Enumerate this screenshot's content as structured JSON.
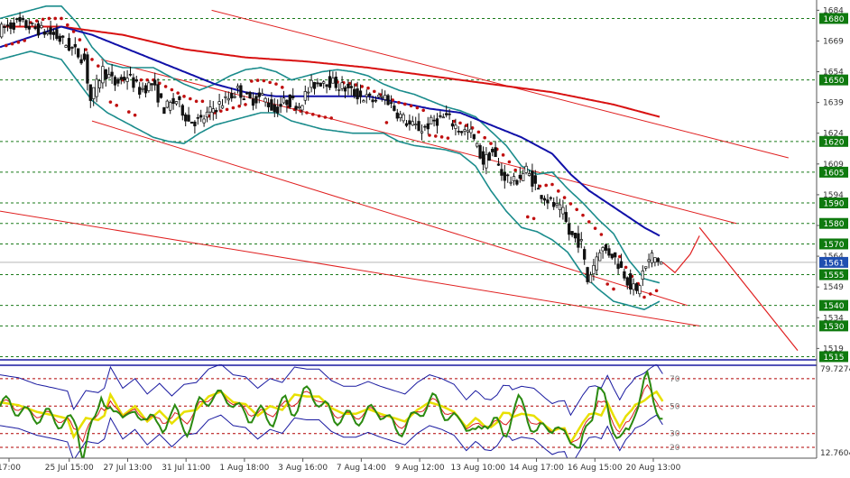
{
  "chart_data": {
    "type": "candlestick",
    "price_axis": {
      "ylim": [
        1513,
        1689
      ],
      "tick_labels": [
        "1684",
        "1669",
        "1654",
        "1639",
        "1624",
        "1609",
        "1594",
        "1579",
        "1564",
        "1549",
        "1534",
        "1519"
      ],
      "level_labels": [
        "1680",
        "1650",
        "1620",
        "1605",
        "1590",
        "1580",
        "1570",
        "1555",
        "1540",
        "1530",
        "1515"
      ],
      "current_price": "1561"
    },
    "x_axis": {
      "tick_labels": [
        "17:00",
        "25 Jul 15:00",
        "27 Jul 13:00",
        "31 Jul 11:00",
        "1 Aug 18:00",
        "3 Aug 16:00",
        "7 Aug 14:00",
        "9 Aug 12:00",
        "13 Aug 10:00",
        "14 Aug 17:00",
        "16 Aug 15:00",
        "20 Aug 13:00"
      ]
    },
    "oscillator": {
      "ylim": [
        12.7604,
        79.7274
      ],
      "axis_labels": [
        "79.7274",
        "12.7604"
      ],
      "levels": [
        "70",
        "50",
        "30",
        "20"
      ]
    },
    "close_path": [
      [
        0,
        1674
      ],
      [
        6,
        1678
      ],
      [
        12,
        1675
      ],
      [
        18,
        1672
      ],
      [
        24,
        1665
      ],
      [
        28,
        1660
      ],
      [
        30,
        1640
      ],
      [
        34,
        1655
      ],
      [
        38,
        1648
      ],
      [
        42,
        1652
      ],
      [
        46,
        1645
      ],
      [
        50,
        1648
      ],
      [
        54,
        1636
      ],
      [
        58,
        1640
      ],
      [
        62,
        1630
      ],
      [
        66,
        1630
      ],
      [
        70,
        1636
      ],
      [
        74,
        1640
      ],
      [
        78,
        1645
      ],
      [
        82,
        1640
      ],
      [
        86,
        1642
      ],
      [
        90,
        1635
      ],
      [
        94,
        1640
      ],
      [
        98,
        1638
      ],
      [
        102,
        1647
      ],
      [
        106,
        1650
      ],
      [
        110,
        1648
      ],
      [
        114,
        1645
      ],
      [
        118,
        1642
      ],
      [
        122,
        1640
      ],
      [
        126,
        1642
      ],
      [
        130,
        1634
      ],
      [
        134,
        1628
      ],
      [
        138,
        1626
      ],
      [
        142,
        1630
      ],
      [
        146,
        1632
      ],
      [
        150,
        1626
      ],
      [
        154,
        1624
      ],
      [
        158,
        1610
      ],
      [
        161,
        1615
      ],
      [
        164,
        1604
      ],
      [
        168,
        1600
      ],
      [
        172,
        1606
      ],
      [
        176,
        1596
      ],
      [
        180,
        1590
      ],
      [
        184,
        1585
      ],
      [
        186,
        1575
      ],
      [
        190,
        1570
      ],
      [
        192,
        1552
      ],
      [
        194,
        1560
      ],
      [
        196,
        1568
      ],
      [
        200,
        1565
      ],
      [
        203,
        1558
      ],
      [
        206,
        1550
      ],
      [
        208,
        1546
      ],
      [
        210,
        1556
      ],
      [
        213,
        1564
      ],
      [
        216,
        1561
      ]
    ],
    "upper_bollinger": [
      [
        0,
        1680
      ],
      [
        10,
        1684
      ],
      [
        15,
        1686
      ],
      [
        20,
        1686
      ],
      [
        25,
        1678
      ],
      [
        30,
        1666
      ],
      [
        35,
        1658
      ],
      [
        40,
        1656
      ],
      [
        45,
        1656
      ],
      [
        50,
        1656
      ],
      [
        55,
        1652
      ],
      [
        60,
        1648
      ],
      [
        65,
        1645
      ],
      [
        70,
        1648
      ],
      [
        75,
        1652
      ],
      [
        80,
        1655
      ],
      [
        85,
        1656
      ],
      [
        90,
        1654
      ],
      [
        95,
        1650
      ],
      [
        100,
        1652
      ],
      [
        105,
        1654
      ],
      [
        110,
        1655
      ],
      [
        115,
        1654
      ],
      [
        120,
        1652
      ],
      [
        125,
        1648
      ],
      [
        130,
        1645
      ],
      [
        135,
        1643
      ],
      [
        140,
        1640
      ],
      [
        145,
        1637
      ],
      [
        150,
        1635
      ],
      [
        155,
        1632
      ],
      [
        160,
        1625
      ],
      [
        165,
        1618
      ],
      [
        170,
        1608
      ],
      [
        175,
        1604
      ],
      [
        180,
        1605
      ],
      [
        185,
        1597
      ],
      [
        190,
        1590
      ],
      [
        195,
        1582
      ],
      [
        200,
        1575
      ],
      [
        205,
        1562
      ],
      [
        210,
        1553
      ],
      [
        215,
        1551
      ]
    ],
    "lower_bollinger": [
      [
        0,
        1660
      ],
      [
        10,
        1664
      ],
      [
        20,
        1660
      ],
      [
        30,
        1640
      ],
      [
        35,
        1634
      ],
      [
        40,
        1630
      ],
      [
        45,
        1626
      ],
      [
        50,
        1622
      ],
      [
        55,
        1620
      ],
      [
        60,
        1619
      ],
      [
        65,
        1624
      ],
      [
        70,
        1628
      ],
      [
        75,
        1630
      ],
      [
        80,
        1632
      ],
      [
        85,
        1634
      ],
      [
        90,
        1634
      ],
      [
        95,
        1630
      ],
      [
        100,
        1628
      ],
      [
        105,
        1626
      ],
      [
        110,
        1625
      ],
      [
        115,
        1624
      ],
      [
        120,
        1624
      ],
      [
        125,
        1624
      ],
      [
        130,
        1620
      ],
      [
        135,
        1618
      ],
      [
        140,
        1617
      ],
      [
        145,
        1616
      ],
      [
        150,
        1614
      ],
      [
        155,
        1608
      ],
      [
        160,
        1596
      ],
      [
        165,
        1586
      ],
      [
        170,
        1578
      ],
      [
        175,
        1576
      ],
      [
        180,
        1572
      ],
      [
        185,
        1566
      ],
      [
        190,
        1555
      ],
      [
        195,
        1548
      ],
      [
        200,
        1542
      ],
      [
        205,
        1540
      ],
      [
        210,
        1538
      ],
      [
        215,
        1542
      ]
    ],
    "moving_average_fast": [
      [
        0,
        1666
      ],
      [
        20,
        1676
      ],
      [
        30,
        1672
      ],
      [
        40,
        1666
      ],
      [
        50,
        1660
      ],
      [
        60,
        1654
      ],
      [
        70,
        1648
      ],
      [
        80,
        1644
      ],
      [
        90,
        1642
      ],
      [
        100,
        1642
      ],
      [
        110,
        1642
      ],
      [
        120,
        1642
      ],
      [
        130,
        1639
      ],
      [
        140,
        1636
      ],
      [
        150,
        1634
      ],
      [
        160,
        1628
      ],
      [
        170,
        1622
      ],
      [
        180,
        1614
      ],
      [
        186,
        1604
      ],
      [
        192,
        1596
      ],
      [
        198,
        1590
      ],
      [
        204,
        1584
      ],
      [
        210,
        1578
      ],
      [
        215,
        1574
      ]
    ],
    "moving_average_slow": [
      [
        0,
        1676
      ],
      [
        20,
        1676
      ],
      [
        40,
        1672
      ],
      [
        60,
        1665
      ],
      [
        80,
        1661
      ],
      [
        100,
        1659
      ],
      [
        120,
        1656
      ],
      [
        140,
        1652
      ],
      [
        160,
        1648
      ],
      [
        180,
        1644
      ],
      [
        200,
        1638
      ],
      [
        215,
        1632
      ]
    ],
    "channels": [
      {
        "from": [
          69,
          1684
        ],
        "to": [
          257,
          1612
        ]
      },
      {
        "from": [
          33,
          1660
        ],
        "to": [
          240,
          1580
        ]
      },
      {
        "from": [
          30,
          1630
        ],
        "to": [
          224,
          1540
        ]
      },
      {
        "from": [
          0,
          1586
        ],
        "to": [
          228,
          1530
        ]
      }
    ],
    "projection_path": [
      [
        216,
        1561
      ],
      [
        220,
        1556
      ],
      [
        225,
        1565
      ],
      [
        228,
        1574
      ]
    ],
    "projection_drop": {
      "from": [
        228,
        1578
      ],
      "to": [
        260,
        1518
      ]
    }
  }
}
